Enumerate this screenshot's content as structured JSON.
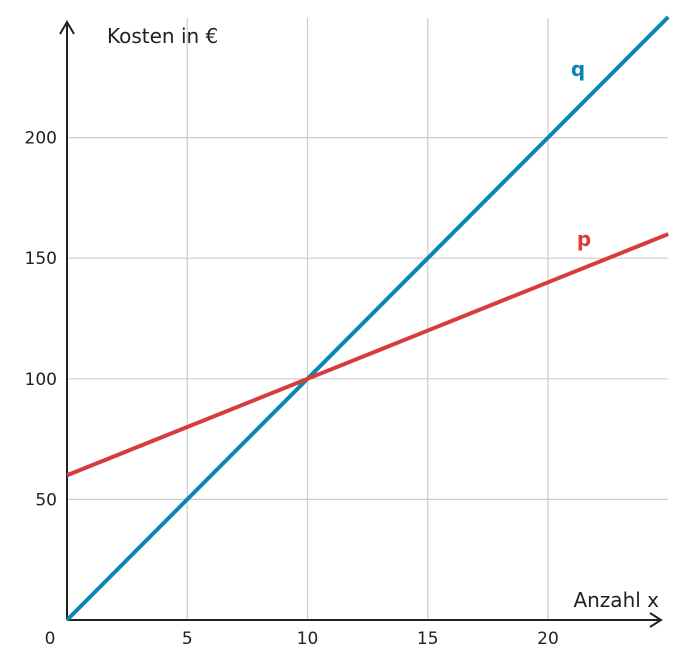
{
  "chart_data": {
    "type": "line",
    "title": "",
    "xlabel": "Anzahl x",
    "ylabel": "Kosten in €",
    "xlim": [
      0,
      25
    ],
    "ylim": [
      0,
      250
    ],
    "grid": true,
    "origin_label": "0",
    "x_ticks": [
      {
        "value": 5,
        "label": "5"
      },
      {
        "value": 10,
        "label": "10"
      },
      {
        "value": 15,
        "label": "15"
      },
      {
        "value": 20,
        "label": "20"
      }
    ],
    "y_ticks": [
      {
        "value": 50,
        "label": "50"
      },
      {
        "value": 100,
        "label": "100"
      },
      {
        "value": 150,
        "label": "150"
      },
      {
        "value": 200,
        "label": "200"
      }
    ],
    "series": [
      {
        "name": "q",
        "color": "#0a86b5",
        "x": [
          0,
          5,
          10,
          15,
          20,
          25
        ],
        "y": [
          0,
          50,
          100,
          150,
          200,
          250
        ]
      },
      {
        "name": "p",
        "color": "#d63c3c",
        "x": [
          0,
          5,
          10,
          15,
          20,
          25
        ],
        "y": [
          60,
          80,
          100,
          120,
          140,
          160
        ]
      }
    ]
  }
}
